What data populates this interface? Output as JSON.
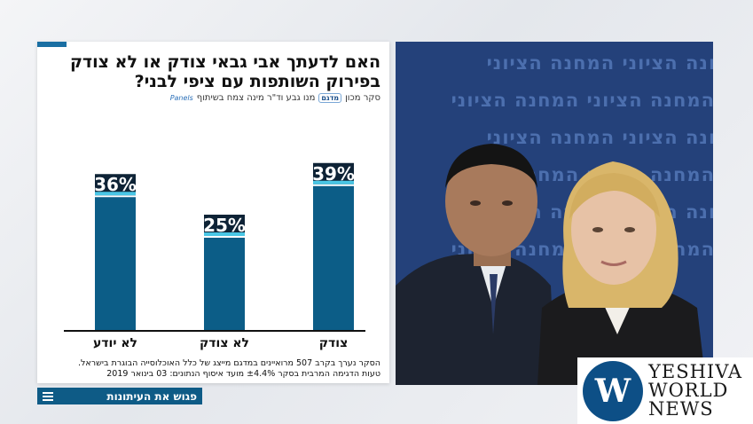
{
  "title": "האם לדעתך אבי גבאי צודק או לא צודק בפירוק השותפות עם ציפי לבני?",
  "source": {
    "label": "סקר מכון",
    "pollsters": "מנו גבע וד\"ר מינה צמח בשיתוף",
    "logo_text": "מדגם",
    "partner": "Panels"
  },
  "note_line1": "הסקר נערך בקרב 507 מרואיינים במדגם מייצג של כלל האוכלוסייה הבוגרת בישראל.",
  "note_line2": "טעות הדגימה המרבית בסקר ±4.4% מועד איסוף הנתונים: 03 בינואר 2019",
  "strip_text": "פגוש את העיתונות",
  "photo_bg_text": "המחנה הציוני המחנה הציוני",
  "watermark": {
    "line1": "YESHIVA",
    "line2": "WORLD",
    "line3": "NEWS"
  },
  "colors": {
    "bar": "#0c5d87",
    "label_bg": "#0e2336",
    "label_text": "#ffffff",
    "accent": "#1a6fa3",
    "strip": "#0e5b86",
    "label_bar": "#49c6e5"
  },
  "chart_data": {
    "type": "bar",
    "categories": [
      "לא יודע",
      "לא צודק",
      "צודק"
    ],
    "values": [
      36,
      25,
      39
    ],
    "labels": [
      "36%",
      "25%",
      "39%"
    ],
    "ylim": [
      0,
      50
    ],
    "grid": false
  }
}
